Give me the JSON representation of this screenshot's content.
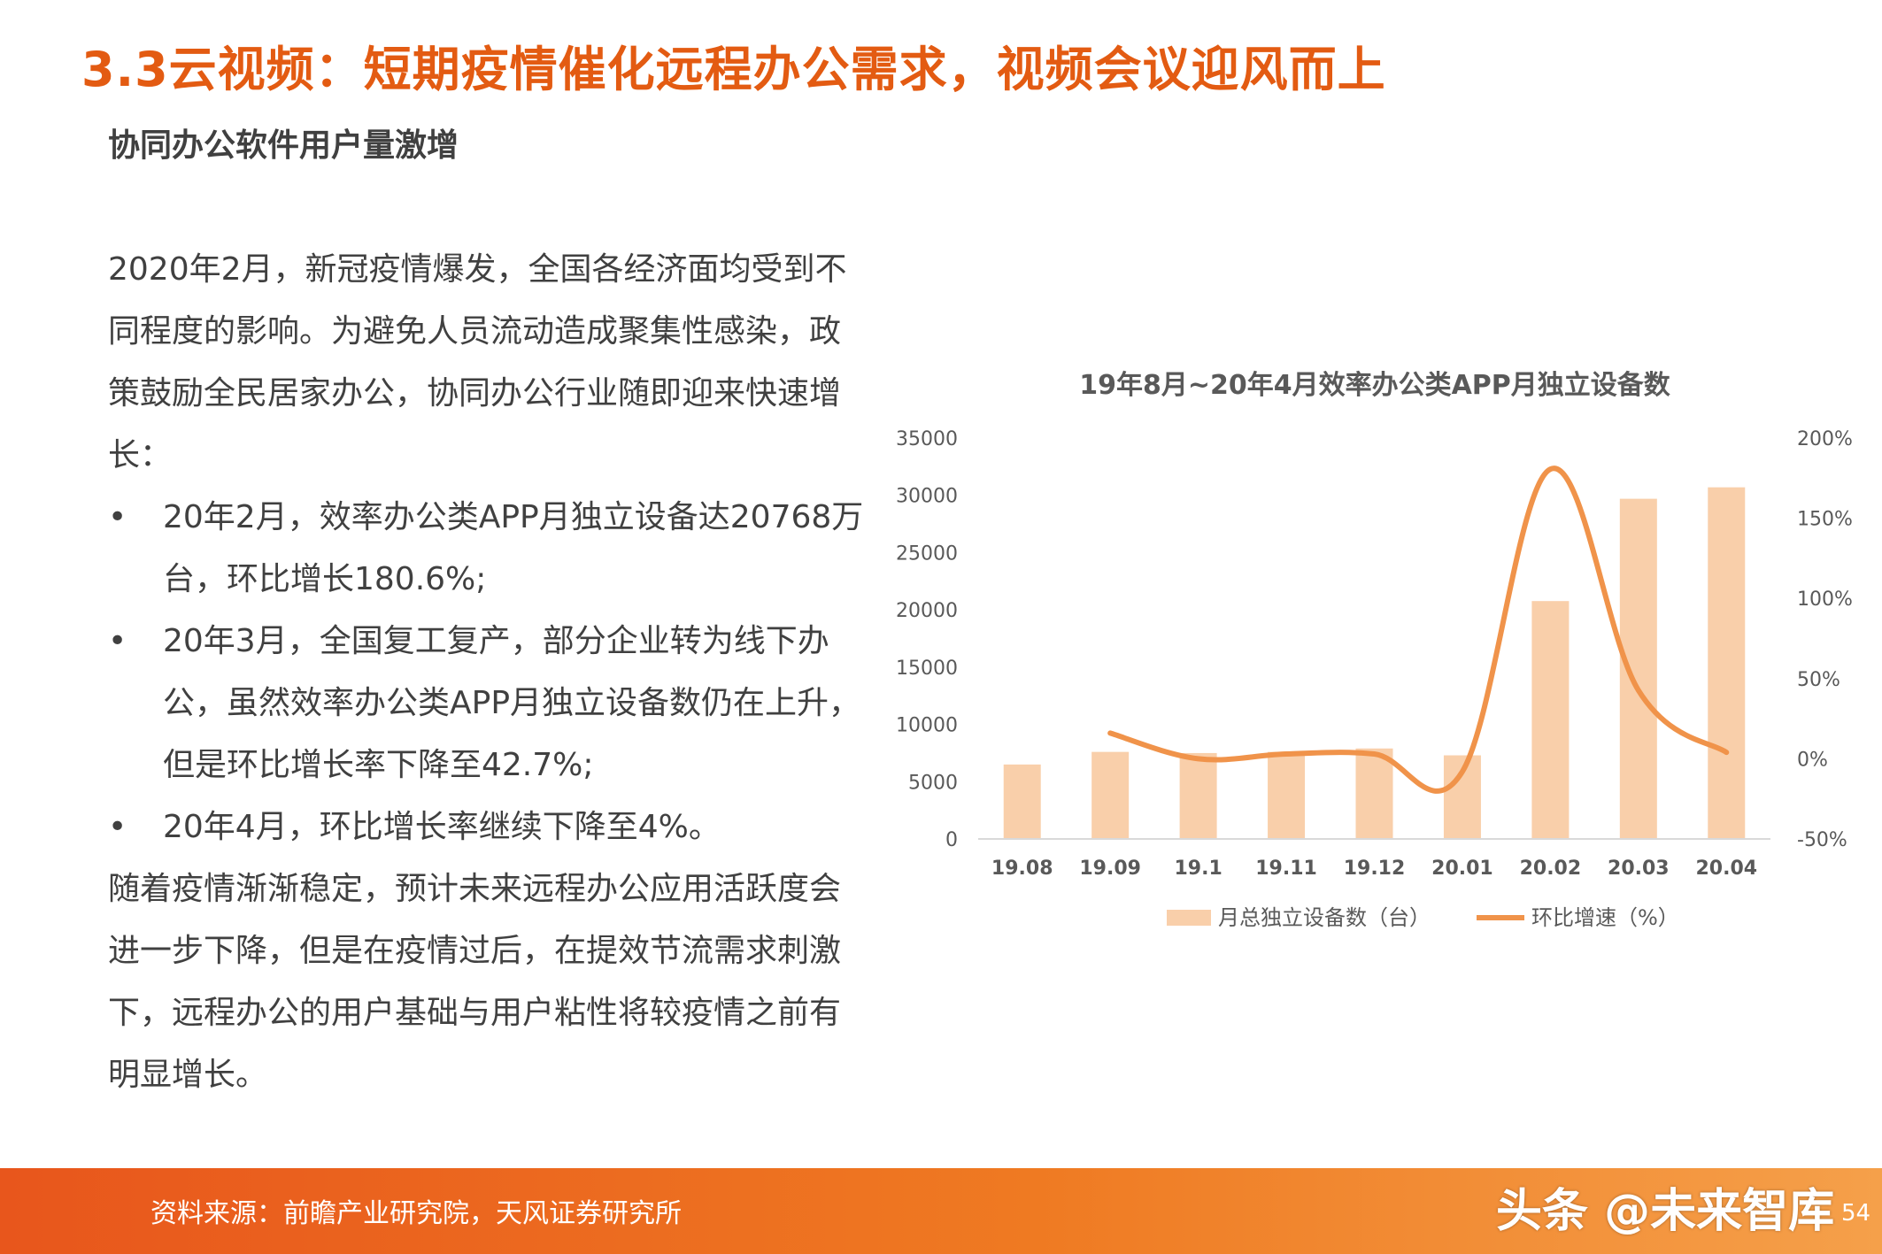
{
  "page": {
    "title": "3.3云视频：短期疫情催化远程办公需求，视频会议迎风而上",
    "subtitle": "协同办公软件用户量激增",
    "intro": "2020年2月，新冠疫情爆发，全国各经济面均受到不同程度的影响。为避免人员流动造成聚集性感染，政策鼓励全民居家办公，协同办公行业随即迎来快速增长：",
    "bullets": [
      "20年2月，效率办公类APP月独立设备达20768万台，环比增长180.6%;",
      "20年3月，全国复工复产，部分企业转为线下办公，虽然效率办公类APP月独立设备数仍在上升，但是环比增长率下降至42.7%;",
      "20年4月，环比增长率继续下降至4%。"
    ],
    "bullet_symbol": "•",
    "conclusion": "随着疫情渐渐稳定，预计未来远程办公应用活跃度会进一步下降，但是在疫情过后，在提效节流需求刺激下，远程办公的用户基础与用户粘性将较疫情之前有明显增长。"
  },
  "footer": {
    "source": "资料来源：前瞻产业研究院，天风证券研究所",
    "watermark": "头条 @未来智库",
    "page_number": "54"
  },
  "colors": {
    "accent": "#E35B12",
    "bar": "#F9CFAA",
    "line": "#F0934A",
    "text": "#404040"
  },
  "chart_data": {
    "type": "bar",
    "title": "19年8月~20年4月效率办公类APP月独立设备数",
    "categories": [
      "19.08",
      "19.09",
      "19.1",
      "19.11",
      "19.12",
      "20.01",
      "20.02",
      "20.03",
      "20.04"
    ],
    "series": [
      {
        "name": "月总独立设备数（台）",
        "type": "bar",
        "axis": "left",
        "values": [
          6500,
          7600,
          7500,
          7600,
          7900,
          7300,
          20768,
          29700,
          30700
        ]
      },
      {
        "name": "环比增速（%）",
        "type": "line",
        "axis": "right",
        "values": [
          null,
          16,
          0,
          3,
          3,
          -8,
          180.6,
          42.7,
          4
        ]
      }
    ],
    "y_left": {
      "min": 0,
      "max": 35000,
      "ticks": [
        "0",
        "5000",
        "10000",
        "15000",
        "20000",
        "25000",
        "30000",
        "35000"
      ]
    },
    "y_right": {
      "min": -50,
      "max": 200,
      "ticks": [
        "-50%",
        "0%",
        "50%",
        "100%",
        "150%",
        "200%"
      ]
    },
    "legend_position": "bottom",
    "grid": false
  }
}
